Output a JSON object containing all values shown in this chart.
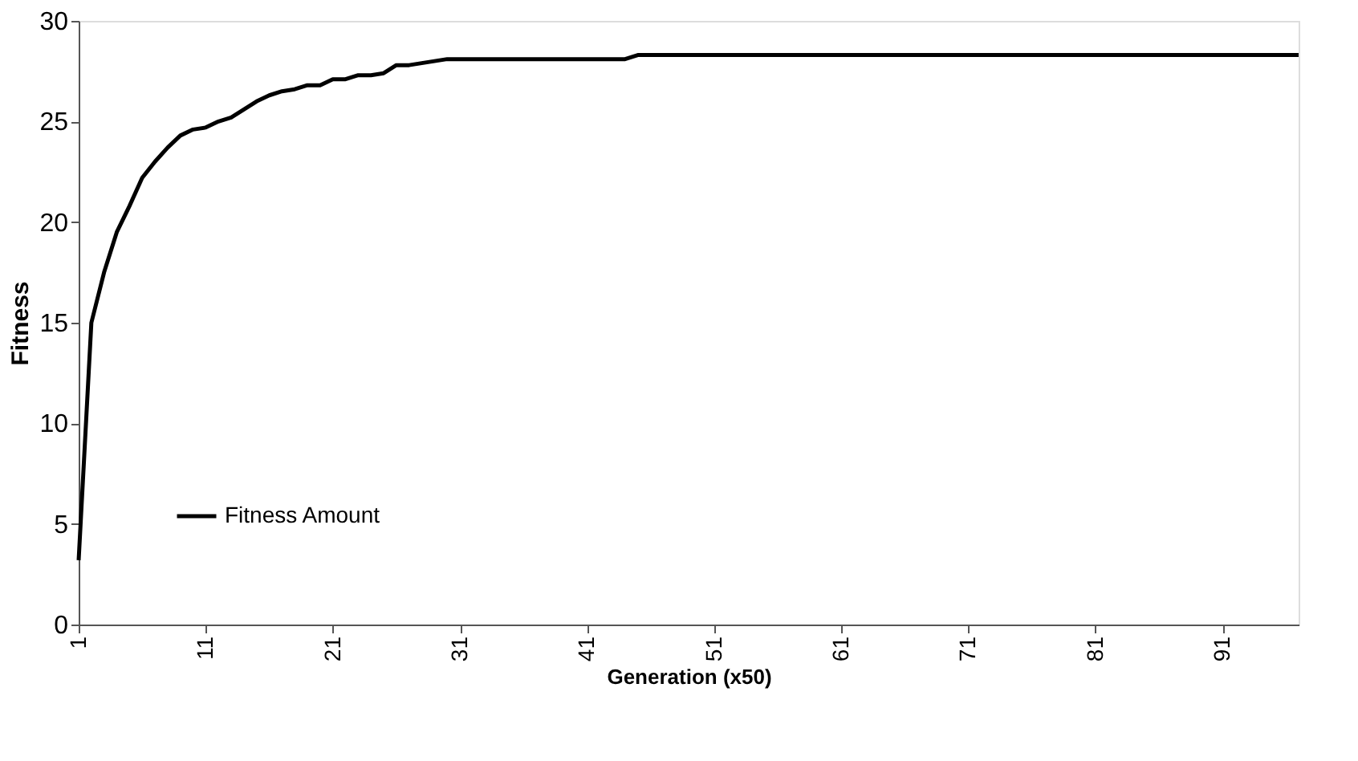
{
  "chart_data": {
    "type": "line",
    "xlabel": "Generation (x50)",
    "ylabel": "Fitness",
    "x": [
      1,
      2,
      3,
      4,
      5,
      6,
      7,
      8,
      9,
      10,
      11,
      12,
      13,
      14,
      15,
      16,
      17,
      18,
      19,
      20,
      21,
      22,
      23,
      24,
      25,
      26,
      27,
      28,
      29,
      30,
      44,
      45,
      97
    ],
    "series": [
      {
        "name": "Fitness Amount",
        "color": "#000000",
        "values": [
          3.2,
          15,
          17.5,
          19.5,
          20.8,
          22.2,
          23,
          23.7,
          24.3,
          24.6,
          24.7,
          25,
          25.2,
          25.6,
          26,
          26.3,
          26.5,
          26.6,
          26.8,
          26.8,
          27.1,
          27.1,
          27.3,
          27.3,
          27.4,
          27.8,
          27.8,
          27.9,
          28,
          28.1,
          28.1,
          28.3,
          28.3
        ]
      }
    ],
    "xlim": [
      1,
      97
    ],
    "xticks": [
      1,
      11,
      21,
      31,
      41,
      51,
      61,
      71,
      81,
      91
    ],
    "ylim": [
      0,
      30
    ],
    "yticks": [
      0,
      5,
      10,
      15,
      20,
      25,
      30
    ],
    "grid": false,
    "legend": "bottom left",
    "marker": "none",
    "line_style": "solid"
  }
}
